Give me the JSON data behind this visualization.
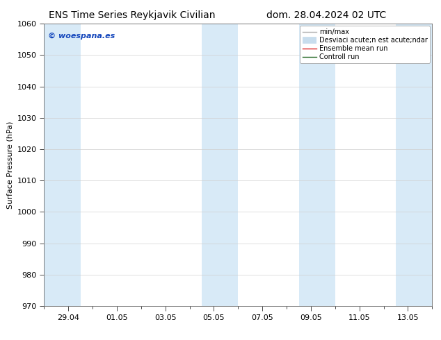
{
  "title_left": "ENS Time Series Reykjavik Civilian",
  "title_right": "dom. 28.04.2024 02 UTC",
  "ylabel": "Surface Pressure (hPa)",
  "ylim": [
    970,
    1060
  ],
  "yticks": [
    970,
    980,
    990,
    1000,
    1010,
    1020,
    1030,
    1040,
    1050,
    1060
  ],
  "xtick_labels": [
    "29.04",
    "01.05",
    "03.05",
    "05.05",
    "07.05",
    "09.05",
    "11.05",
    "13.05"
  ],
  "xtick_positions": [
    1,
    3,
    5,
    7,
    9,
    11,
    13,
    15
  ],
  "x_min": 0,
  "x_max": 16,
  "shaded_bands": [
    {
      "x_start": 0.0,
      "x_end": 1.5
    },
    {
      "x_start": 6.5,
      "x_end": 8.0
    },
    {
      "x_start": 10.5,
      "x_end": 12.0
    },
    {
      "x_start": 14.5,
      "x_end": 16.0
    }
  ],
  "band_color": "#d8eaf7",
  "background_color": "#ffffff",
  "grid_color": "#d0d0d0",
  "watermark_text": "© woespana.es",
  "watermark_color": "#1144bb",
  "legend_entries": [
    {
      "label": "min/max",
      "color": "#b0b0b0",
      "lw": 1.0,
      "type": "line"
    },
    {
      "label": "Desviaci acute;n est acute;ndar",
      "color": "#c8dded",
      "lw": 7,
      "type": "thick_line"
    },
    {
      "label": "Ensemble mean run",
      "color": "#dd2222",
      "lw": 1.0,
      "type": "line"
    },
    {
      "label": "Controll run",
      "color": "#226622",
      "lw": 1.0,
      "type": "line"
    }
  ],
  "title_fontsize": 10,
  "label_fontsize": 8,
  "tick_fontsize": 8,
  "legend_fontsize": 7
}
